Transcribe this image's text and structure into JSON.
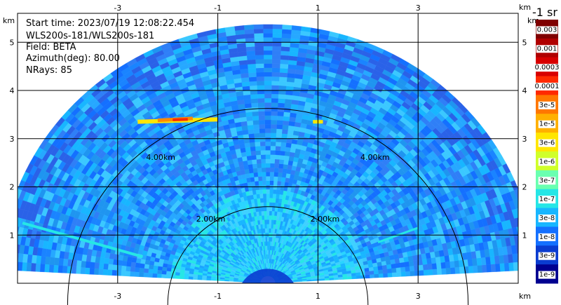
{
  "info": {
    "start_time": "Start time: 2023/07/19 12:08:22.454",
    "instrument": "WLS200s-181/WLS200s-181",
    "field": "Field: BETA",
    "azimuth": "Azimuth(deg): 80.00",
    "nrays": "NRays: 85"
  },
  "colorbar": {
    "title": "-1 sr",
    "labels": [
      "0.003",
      "0.001",
      "0.0003",
      "0.0001",
      "3e-5",
      "1e-5",
      "3e-6",
      "1e-6",
      "3e-7",
      "1e-7",
      "3e-8",
      "1e-8",
      "3e-9",
      "1e-9"
    ],
    "colors": [
      "#7f0000",
      "#b00000",
      "#d80000",
      "#ff2a00",
      "#ff7700",
      "#ffb000",
      "#ffe600",
      "#d0ff2a",
      "#6affb0",
      "#26e6e6",
      "#18b6ff",
      "#1470ff",
      "#0a3cd0",
      "#000090"
    ]
  },
  "chart_data": {
    "type": "heatmap",
    "x_unit": "km",
    "y_unit": "km",
    "x_ticks": [
      -3,
      -1,
      1,
      3
    ],
    "y_ticks": [
      1,
      2,
      3,
      4,
      5
    ],
    "xlim": [
      -5.0,
      5.0
    ],
    "ylim": [
      0.0,
      5.6
    ],
    "range_rings": [
      {
        "radius_km": 2.0,
        "label": "2.00km"
      },
      {
        "radius_km": 4.0,
        "label": "4.00km"
      }
    ],
    "sector_max_range_km": 5.3,
    "grid": true
  }
}
